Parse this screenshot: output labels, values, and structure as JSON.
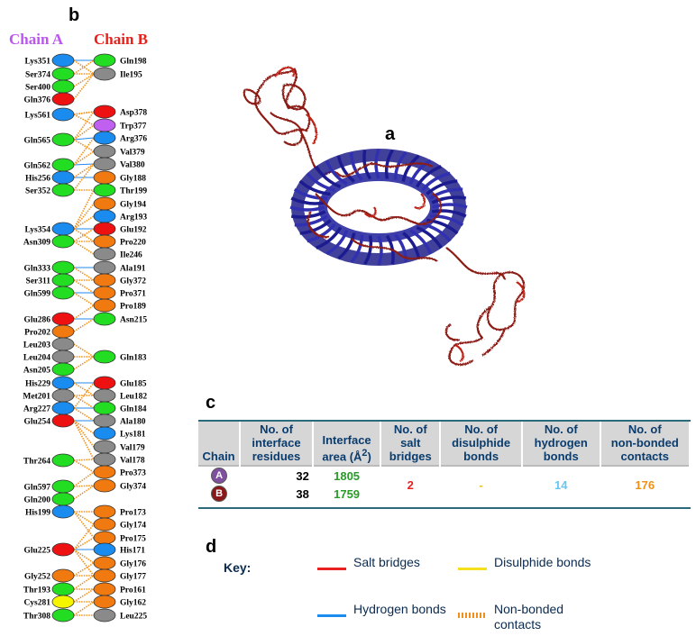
{
  "panels": {
    "a": "a",
    "b": "b",
    "c": "c",
    "d": "d"
  },
  "chains": {
    "a_label": "Chain A",
    "b_label": "Chain B",
    "a_color": "#bb55ee",
    "b_color": "#e8201a"
  },
  "residue_colors": {
    "blue": "#1a8cf0",
    "green": "#22dd22",
    "red": "#ee1111",
    "gray": "#8a8a8a",
    "orange": "#f07a10",
    "purple": "#c060f0",
    "yellow": "#f5f500"
  },
  "chain_a_residues": [
    {
      "label": "Lys351",
      "color": "blue"
    },
    {
      "label": "Ser374",
      "color": "green"
    },
    {
      "label": "Ser400",
      "color": "green"
    },
    {
      "label": "Gln376",
      "color": "red"
    },
    {
      "label": "Lys561",
      "color": "blue"
    },
    {
      "label": "Gln565",
      "color": "green"
    },
    {
      "label": "Gln562",
      "color": "green"
    },
    {
      "label": "His256",
      "color": "blue"
    },
    {
      "label": "Ser352",
      "color": "green"
    },
    {
      "label": "Lys354",
      "color": "blue"
    },
    {
      "label": "Asn309",
      "color": "green"
    },
    {
      "label": "Gln333",
      "color": "green"
    },
    {
      "label": "Ser311",
      "color": "green"
    },
    {
      "label": "Gln599",
      "color": "green"
    },
    {
      "label": "Glu286",
      "color": "red"
    },
    {
      "label": "Pro202",
      "color": "orange"
    },
    {
      "label": "Leu203",
      "color": "gray"
    },
    {
      "label": "Leu204",
      "color": "gray"
    },
    {
      "label": "Asn205",
      "color": "green"
    },
    {
      "label": "His229",
      "color": "blue"
    },
    {
      "label": "Met201",
      "color": "gray"
    },
    {
      "label": "Arg227",
      "color": "blue"
    },
    {
      "label": "Glu254",
      "color": "red"
    },
    {
      "label": "Thr264",
      "color": "green"
    },
    {
      "label": "Gln597",
      "color": "green"
    },
    {
      "label": "Gln200",
      "color": "green"
    },
    {
      "label": "His199",
      "color": "blue"
    },
    {
      "label": "Glu225",
      "color": "red"
    },
    {
      "label": "Gly252",
      "color": "orange"
    },
    {
      "label": "Thr193",
      "color": "green"
    },
    {
      "label": "Cys281",
      "color": "yellow"
    },
    {
      "label": "Thr308",
      "color": "green"
    }
  ],
  "chain_b_residues": [
    {
      "label": "Gln198",
      "color": "green"
    },
    {
      "label": "Ile195",
      "color": "gray"
    },
    {
      "label": "Asp378",
      "color": "red"
    },
    {
      "label": "Trp377",
      "color": "purple"
    },
    {
      "label": "Arg376",
      "color": "blue"
    },
    {
      "label": "Val379",
      "color": "gray"
    },
    {
      "label": "Val380",
      "color": "gray"
    },
    {
      "label": "Gly188",
      "color": "orange"
    },
    {
      "label": "Thr199",
      "color": "green"
    },
    {
      "label": "Gly194",
      "color": "orange"
    },
    {
      "label": "Arg193",
      "color": "blue"
    },
    {
      "label": "Glu192",
      "color": "red"
    },
    {
      "label": "Pro220",
      "color": "orange"
    },
    {
      "label": "Ile246",
      "color": "gray"
    },
    {
      "label": "Ala191",
      "color": "gray"
    },
    {
      "label": "Gly372",
      "color": "orange"
    },
    {
      "label": "Pro371",
      "color": "orange"
    },
    {
      "label": "Pro189",
      "color": "orange"
    },
    {
      "label": "Asn215",
      "color": "green"
    },
    {
      "label": "Gln183",
      "color": "green"
    },
    {
      "label": "Glu185",
      "color": "red"
    },
    {
      "label": "Leu182",
      "color": "gray"
    },
    {
      "label": "Gln184",
      "color": "green"
    },
    {
      "label": "Ala180",
      "color": "gray"
    },
    {
      "label": "Lys181",
      "color": "blue"
    },
    {
      "label": "Val179",
      "color": "gray"
    },
    {
      "label": "Val178",
      "color": "gray"
    },
    {
      "label": "Pro373",
      "color": "orange"
    },
    {
      "label": "Gly374",
      "color": "orange"
    },
    {
      "label": "Pro173",
      "color": "orange"
    },
    {
      "label": "Gly174",
      "color": "orange"
    },
    {
      "label": "Pro175",
      "color": "orange"
    },
    {
      "label": "His171",
      "color": "blue"
    },
    {
      "label": "Gly176",
      "color": "orange"
    },
    {
      "label": "Gly177",
      "color": "orange"
    },
    {
      "label": "Pro161",
      "color": "orange"
    },
    {
      "label": "Gly162",
      "color": "orange"
    },
    {
      "label": "Leu225",
      "color": "gray"
    }
  ],
  "table": {
    "headers": [
      "Chain",
      "No. of interface residues",
      "Interface area (Å2)",
      "No. of salt bridges",
      "No. of disulphide bonds",
      "No. of hydrogen bonds",
      "No. of non-bonded contacts"
    ],
    "rows": [
      {
        "chain": "A",
        "residues": "32",
        "area": "1805"
      },
      {
        "chain": "B",
        "residues": "38",
        "area": "1759"
      }
    ],
    "salt_bridges": "2",
    "disulphide_bonds": "-",
    "hydrogen_bonds": "14",
    "non_bonded": "176",
    "colors": {
      "area": "#2a9a2a",
      "salt": "#e82020",
      "disulphide": "#e8c020",
      "hydrogen": "#6ac6ee",
      "non_bonded": "#f0901a",
      "chain_a_badge": "#8050a0",
      "chain_b_badge": "#8a1818"
    }
  },
  "key": {
    "title": "Key:",
    "items": [
      {
        "label": "Salt bridges",
        "color": "#e82020",
        "style": "solid"
      },
      {
        "label": "Disulphide bonds",
        "color": "#f5e020",
        "style": "solid"
      },
      {
        "label": "Hydrogen bonds",
        "color": "#1a8cf0",
        "style": "solid"
      },
      {
        "label": "Non-bonded contacts",
        "color": "#f0901a",
        "style": "striped"
      }
    ]
  }
}
